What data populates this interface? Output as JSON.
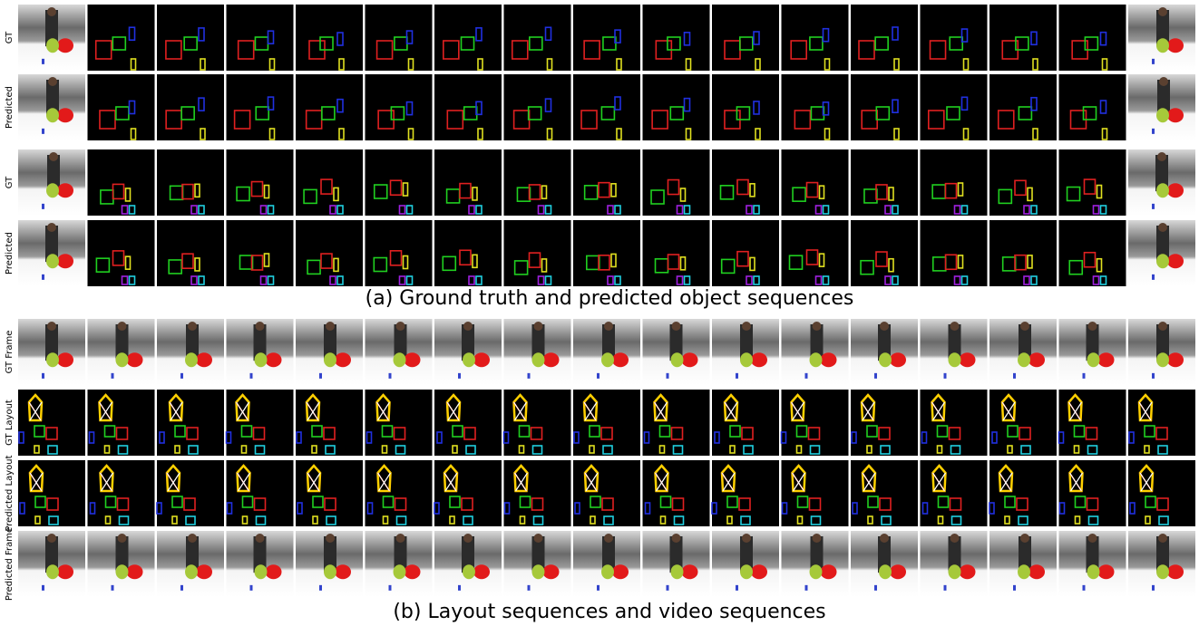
{
  "part_a": {
    "rows": [
      "GT",
      "Predicted",
      "GT",
      "Predicted"
    ],
    "caption": "(a) Ground truth and predicted object sequences"
  },
  "part_b": {
    "rows": [
      "GT Frame",
      "GT Layout",
      "Predicted Layout",
      "Predicted Frame"
    ],
    "caption": "(b) Layout sequences and video sequences"
  }
}
